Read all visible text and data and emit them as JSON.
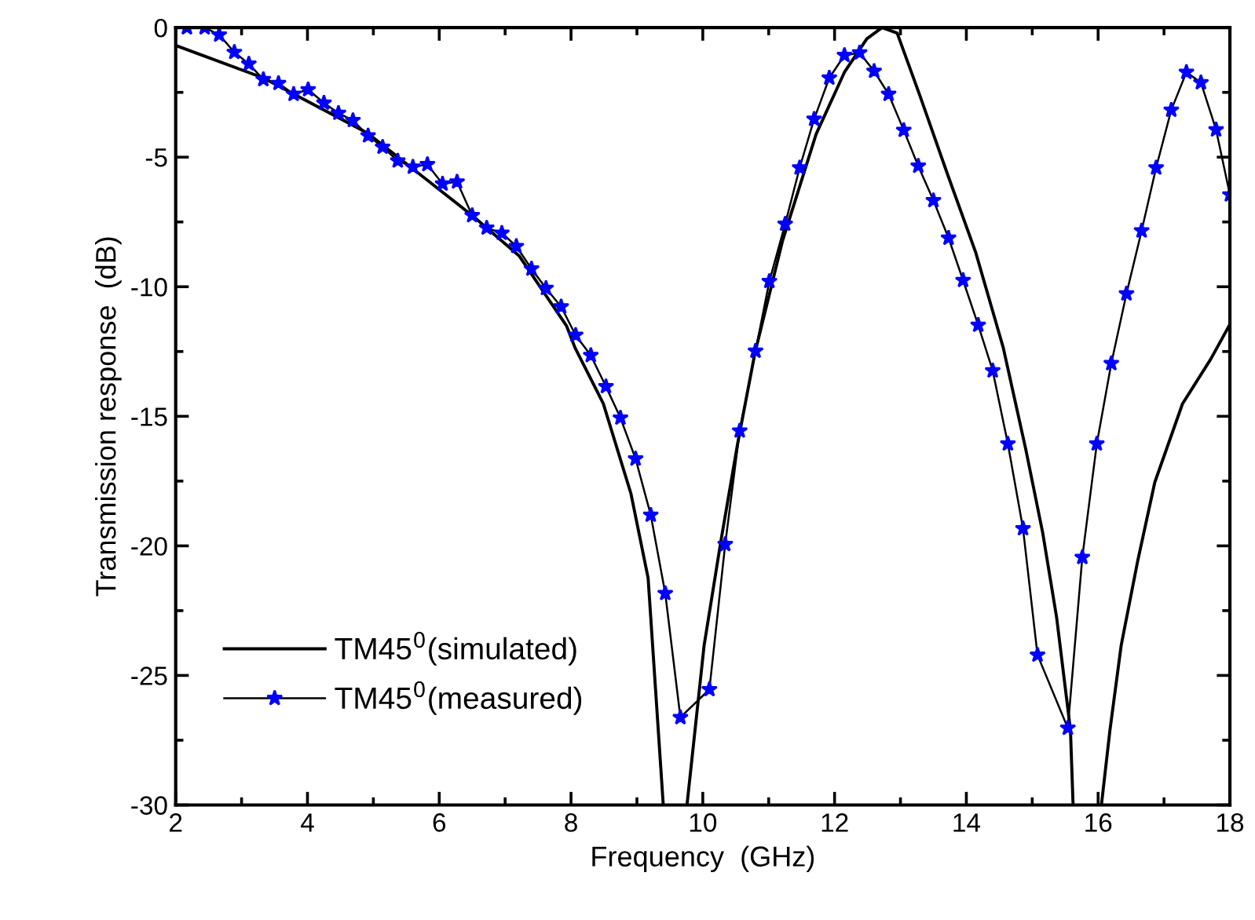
{
  "chart_data": {
    "type": "line",
    "xlabel": "Frequency  (GHz)",
    "ylabel": "Transmission response  (dB)",
    "xlim": [
      2,
      18
    ],
    "ylim": [
      -30,
      0
    ],
    "xticks": [
      2,
      4,
      6,
      8,
      10,
      12,
      14,
      16,
      18
    ],
    "yticks": [
      0,
      -5,
      -10,
      -15,
      -20,
      -25,
      -30
    ],
    "grid": false,
    "legend": "bottom left",
    "series": [
      {
        "name": "TM45$^{0}$(simulated)",
        "color": "#000000",
        "marker": "none",
        "x": [
          2,
          3.33,
          4.91,
          6.5,
          7.21,
          7.93,
          8.06,
          8.49,
          8.91,
          9.17,
          9.4,
          null,
          9.76,
          10.02,
          10.28,
          10.53,
          10.79,
          11.21,
          11.72,
          12.15,
          12.49,
          12.72,
          12.95,
          13.29,
          13.71,
          14.14,
          14.56,
          14.9,
          15.16,
          15.37,
          15.58,
          15.62,
          null,
          16.05,
          16.18,
          16.35,
          16.6,
          16.86,
          17.28,
          17.71,
          18
        ],
        "values": [
          -0.69,
          -1.94,
          -4.07,
          -7.25,
          -8.8,
          -11.5,
          -12.35,
          -14.51,
          -17.99,
          -21.24,
          -30,
          null,
          -30,
          -23.84,
          -19.73,
          -16.04,
          -12.57,
          -8.23,
          -4.11,
          -1.72,
          -0.43,
          0,
          -0.21,
          -2.59,
          -5.63,
          -8.66,
          -12.35,
          -16.25,
          -19.51,
          -22.76,
          -27.1,
          -30,
          null,
          -30,
          -27.1,
          -23.84,
          -20.59,
          -17.55,
          -14.52,
          -12.79,
          -11.45
        ]
      },
      {
        "name": "TM45$^{0}$(measured)",
        "color": "#0000ff",
        "marker": "star",
        "x": [
          2.17,
          2.44,
          2.66,
          2.89,
          3.11,
          3.33,
          3.56,
          3.79,
          4.01,
          4.25,
          4.47,
          4.69,
          4.92,
          5.14,
          5.37,
          5.6,
          5.82,
          6.05,
          6.27,
          6.5,
          6.72,
          6.95,
          7.17,
          7.4,
          7.62,
          7.85,
          8.07,
          8.3,
          8.53,
          8.75,
          8.98,
          9.21,
          9.43,
          9.66,
          10.1,
          10.34,
          10.56,
          10.8,
          11.01,
          11.25,
          11.47,
          11.69,
          11.92,
          12.15,
          12.38,
          12.6,
          12.82,
          13.05,
          13.27,
          13.5,
          13.73,
          13.95,
          14.18,
          14.4,
          14.63,
          14.86,
          15.08,
          15.54,
          15.76,
          15.98,
          16.2,
          16.43,
          16.66,
          16.88,
          17.11,
          17.34,
          17.56,
          17.79,
          18
        ],
        "values": [
          0,
          0,
          -0.28,
          -0.95,
          -1.4,
          -2.0,
          -2.15,
          -2.57,
          -2.39,
          -2.91,
          -3.3,
          -3.58,
          -4.17,
          -4.61,
          -5.14,
          -5.38,
          -5.28,
          -6.03,
          -5.95,
          -7.25,
          -7.73,
          -7.93,
          -8.44,
          -9.31,
          -10.06,
          -10.77,
          -11.87,
          -12.65,
          -13.85,
          -15.06,
          -16.64,
          -18.81,
          -21.83,
          -26.62,
          -25.54,
          -19.94,
          -15.56,
          -12.48,
          -9.79,
          -7.58,
          -5.41,
          -3.53,
          -1.94,
          -1.07,
          -0.97,
          -1.68,
          -2.57,
          -3.96,
          -5.34,
          -6.67,
          -8.12,
          -9.75,
          -11.48,
          -13.24,
          -16.06,
          -19.33,
          -24.21,
          -27.03,
          -20.44,
          -16.06,
          -12.96,
          -10.27,
          -7.84,
          -5.41,
          -3.18,
          -1.72,
          -2.12,
          -3.94,
          -6.45
        ]
      }
    ]
  }
}
